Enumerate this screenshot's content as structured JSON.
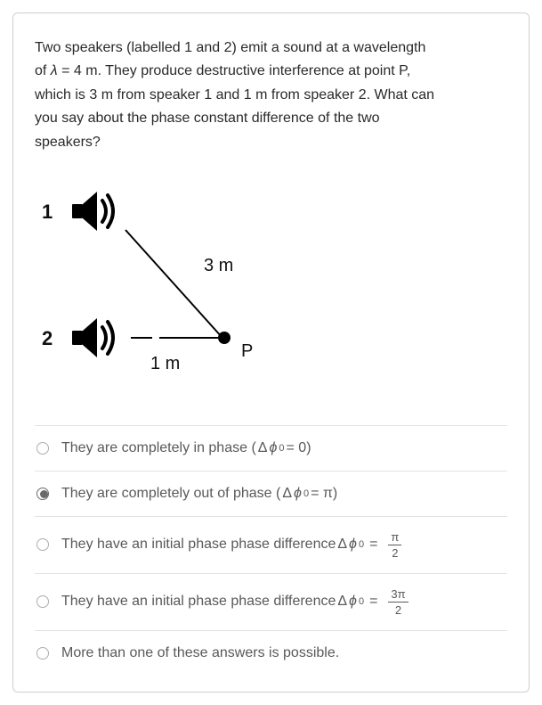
{
  "question": {
    "line1": "Two speakers (labelled 1 and 2) emit a sound at a wavelength",
    "line2_pre": "of ",
    "lambda": "λ",
    "line2_eq": " = ",
    "line2_val": "4 m. They produce destructive interference at point P,",
    "line3": "which is 3 m from speaker 1 and 1 m from speaker 2. What can",
    "line4": "you say about the phase constant difference of the two",
    "line5": "speakers?"
  },
  "diagram": {
    "label1": "1",
    "label2": "2",
    "dist1": "3 m",
    "dist2": "1 m",
    "pointLabel": "P",
    "colors": {
      "line": "#000000",
      "icon": "#000000"
    }
  },
  "phi_expr": {
    "delta": "Δ",
    "phi": "ϕ",
    "sub": "0"
  },
  "options": [
    {
      "id": "opt-in-phase",
      "selected": false,
      "text_pre": "They are completely in phase (",
      "text_post": " = 0)",
      "frac": null
    },
    {
      "id": "opt-out-of-phase",
      "selected": true,
      "text_pre": "They are completely out of phase (",
      "text_post": " = π)",
      "frac": null
    },
    {
      "id": "opt-pi-over-2",
      "selected": false,
      "text_pre": "They have an initial phase phase difference ",
      "text_post": " = ",
      "frac": {
        "num": "π",
        "den": "2"
      }
    },
    {
      "id": "opt-3pi-over-2",
      "selected": false,
      "text_pre": "They have an initial phase phase difference ",
      "text_post": " = ",
      "frac": {
        "num": "3π",
        "den": "2"
      }
    },
    {
      "id": "opt-more-than-one",
      "selected": false,
      "text_pre": "More than one of these answers is possible.",
      "text_post": "",
      "frac": null,
      "no_phi": true
    }
  ]
}
